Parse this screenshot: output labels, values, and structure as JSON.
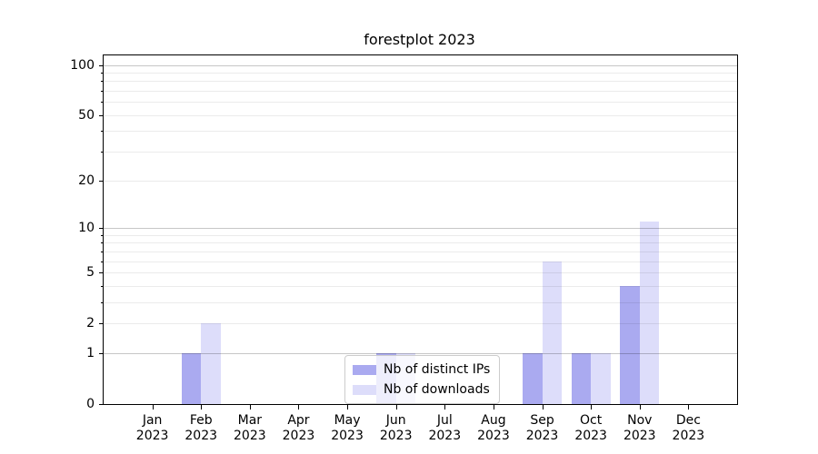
{
  "chart_data": {
    "type": "bar",
    "title": "forestplot 2023",
    "x_months": [
      "Jan",
      "Feb",
      "Mar",
      "Apr",
      "May",
      "Jun",
      "Jul",
      "Aug",
      "Sep",
      "Oct",
      "Nov",
      "Dec"
    ],
    "x_year": "2023",
    "y_scale": "log1p",
    "ylim": [
      0,
      114
    ],
    "y_tick_labels": [
      0,
      1,
      2,
      5,
      10,
      20,
      50,
      100
    ],
    "major_gridlines": [
      1,
      10,
      100
    ],
    "minor_gridlines": [
      2,
      3,
      4,
      5,
      6,
      7,
      8,
      9,
      20,
      30,
      40,
      50,
      60,
      70,
      80,
      90
    ],
    "grid": true,
    "legend_position": "lower center",
    "series": [
      {
        "name": "Nb of distinct IPs",
        "color": "#aaaaf0",
        "values": [
          0,
          1,
          0,
          0,
          0,
          1,
          0,
          0,
          1,
          1,
          4,
          0
        ]
      },
      {
        "name": "Nb of downloads",
        "color": "#ddddfa",
        "values": [
          0,
          2,
          0,
          0,
          0,
          1,
          0,
          0,
          6,
          1,
          11,
          0
        ]
      }
    ],
    "colors": {
      "major_grid": "rgba(0,0,0,0.22)",
      "minor_grid": "rgba(0,0,0,0.08)",
      "axis": "#000000",
      "text": "#000000",
      "legend_border": "#cccccc",
      "legend_bg": "rgba(255,255,255,0.8)"
    }
  }
}
